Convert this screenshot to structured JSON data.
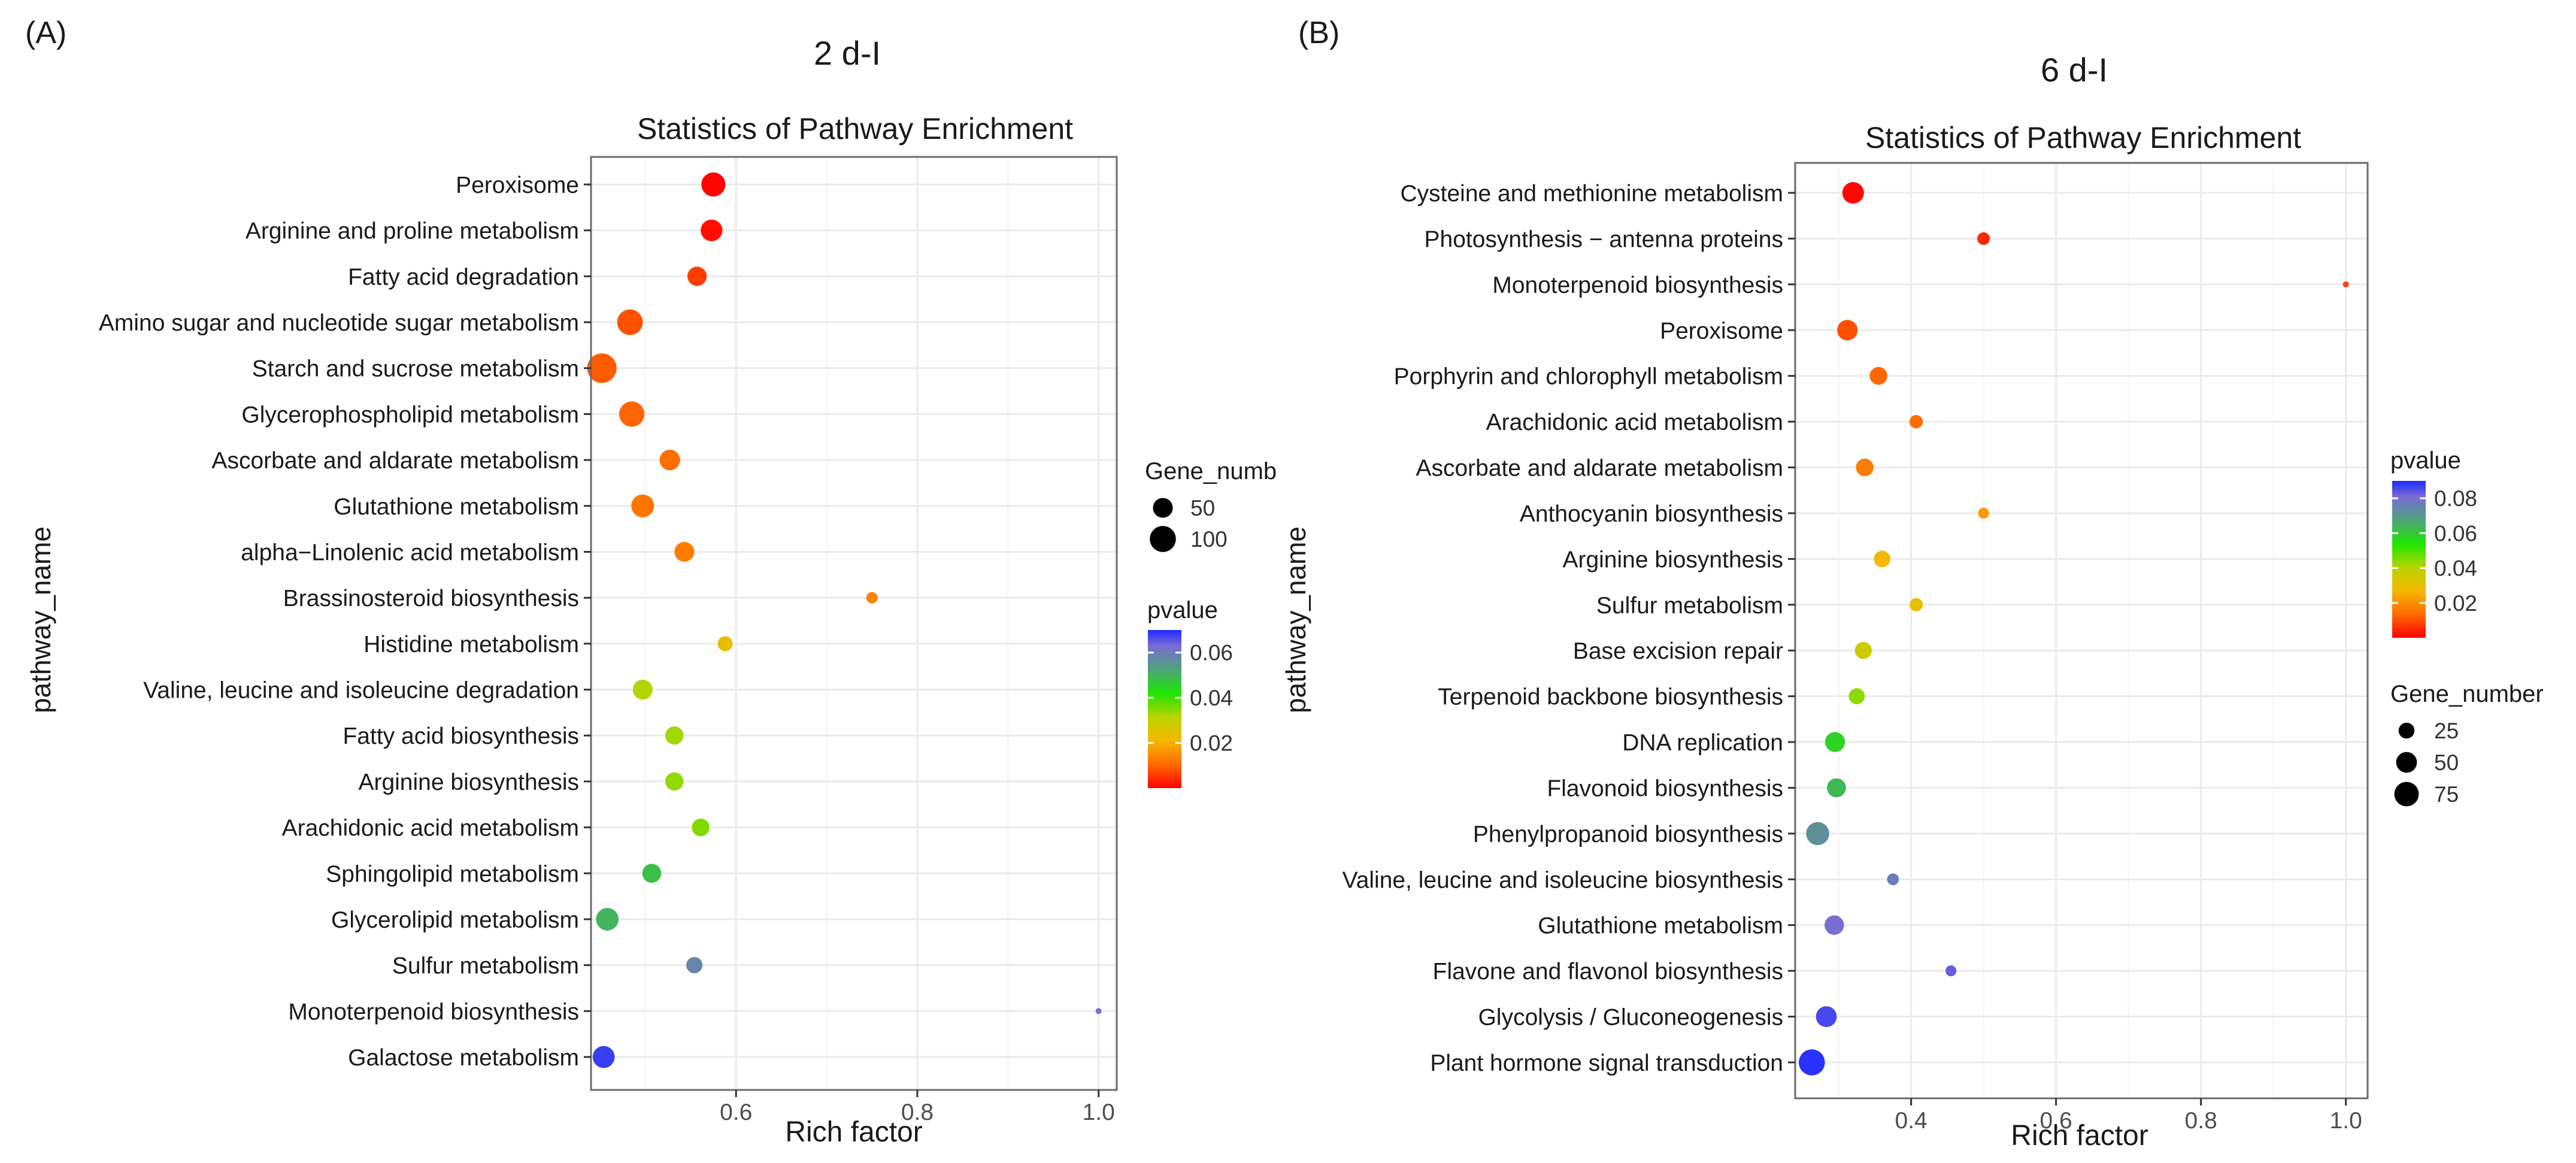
{
  "chart_data": [
    {
      "type": "scatter",
      "panel_label": "(A)",
      "header": "2 d-I",
      "title": "Statistics of Pathway Enrichment",
      "xlabel": "Rich factor",
      "ylabel": "pathway_name",
      "xlim": [
        0.44,
        1.02
      ],
      "xticks": [
        0.6,
        0.8,
        1.0
      ],
      "xtick_labels": [
        "0.6",
        "0.8",
        "1.0"
      ],
      "size_legend": {
        "title": "Gene_numb",
        "values": [
          50,
          100
        ],
        "labels": [
          "50",
          "100"
        ],
        "range": [
          5,
          140
        ]
      },
      "color_legend": {
        "title": "pvalue",
        "range": [
          0,
          0.07
        ],
        "ticks": [
          0.02,
          0.04,
          0.06
        ],
        "labels": [
          "0.02",
          "0.04",
          "0.06"
        ]
      },
      "points": [
        {
          "pathway": "Peroxisome",
          "rich_factor": 0.575,
          "pvalue": 0.0003,
          "gene_number": 82
        },
        {
          "pathway": "Arginine and proline metabolism",
          "rich_factor": 0.573,
          "pvalue": 0.0015,
          "gene_number": 63
        },
        {
          "pathway": "Fatty acid degradation",
          "rich_factor": 0.557,
          "pvalue": 0.006,
          "gene_number": 47
        },
        {
          "pathway": "Amino sugar and nucleotide sugar metabolism",
          "rich_factor": 0.483,
          "pvalue": 0.008,
          "gene_number": 96
        },
        {
          "pathway": "Starch and sucrose metabolism",
          "rich_factor": 0.452,
          "pvalue": 0.009,
          "gene_number": 135
        },
        {
          "pathway": "Glycerophospholipid metabolism",
          "rich_factor": 0.485,
          "pvalue": 0.01,
          "gene_number": 93
        },
        {
          "pathway": "Ascorbate and aldarate metabolism",
          "rich_factor": 0.527,
          "pvalue": 0.011,
          "gene_number": 55
        },
        {
          "pathway": "Glutathione metabolism",
          "rich_factor": 0.497,
          "pvalue": 0.012,
          "gene_number": 72
        },
        {
          "pathway": "alpha−Linolenic acid metabolism",
          "rich_factor": 0.543,
          "pvalue": 0.013,
          "gene_number": 50
        },
        {
          "pathway": "Brassinosteroid biosynthesis",
          "rich_factor": 0.75,
          "pvalue": 0.014,
          "gene_number": 12
        },
        {
          "pathway": "Histidine metabolism",
          "rich_factor": 0.588,
          "pvalue": 0.023,
          "gene_number": 24
        },
        {
          "pathway": "Valine, leucine and isoleucine degradation",
          "rich_factor": 0.497,
          "pvalue": 0.032,
          "gene_number": 50
        },
        {
          "pathway": "Fatty acid biosynthesis",
          "rich_factor": 0.532,
          "pvalue": 0.033,
          "gene_number": 40
        },
        {
          "pathway": "Arginine biosynthesis",
          "rich_factor": 0.532,
          "pvalue": 0.034,
          "gene_number": 40
        },
        {
          "pathway": "Arachidonic acid metabolism",
          "rich_factor": 0.561,
          "pvalue": 0.035,
          "gene_number": 37
        },
        {
          "pathway": "Sphingolipid metabolism",
          "rich_factor": 0.507,
          "pvalue": 0.048,
          "gene_number": 45
        },
        {
          "pathway": "Glycerolipid metabolism",
          "rich_factor": 0.458,
          "pvalue": 0.05,
          "gene_number": 70
        },
        {
          "pathway": "Sulfur metabolism",
          "rich_factor": 0.554,
          "pvalue": 0.058,
          "gene_number": 30
        },
        {
          "pathway": "Monoterpenoid biosynthesis",
          "rich_factor": 1.0,
          "pvalue": 0.062,
          "gene_number": 5
        },
        {
          "pathway": "Galactose metabolism",
          "rich_factor": 0.454,
          "pvalue": 0.068,
          "gene_number": 65
        }
      ]
    },
    {
      "type": "scatter",
      "panel_label": "(B)",
      "header": "6 d-I",
      "title": "Statistics of Pathway Enrichment",
      "xlabel": "Rich factor",
      "ylabel": "pathway_name",
      "xlim": [
        0.24,
        1.03
      ],
      "xticks": [
        0.4,
        0.6,
        0.8,
        1.0
      ],
      "xtick_labels": [
        "0.4",
        "0.6",
        "0.8",
        "1.0"
      ],
      "size_legend": {
        "title": "Gene_number",
        "values": [
          25,
          50,
          75
        ],
        "labels": [
          "25",
          "50",
          "75"
        ],
        "range": [
          5,
          90
        ]
      },
      "color_legend": {
        "title": "pvalue",
        "range": [
          0,
          0.09
        ],
        "ticks": [
          0.02,
          0.04,
          0.06,
          0.08
        ],
        "labels": [
          "0.02",
          "0.04",
          "0.06",
          "0.08"
        ]
      },
      "points": [
        {
          "pathway": "Cysteine and methionine metabolism",
          "rich_factor": 0.32,
          "pvalue": 0.001,
          "gene_number": 55
        },
        {
          "pathway": "Photosynthesis − antenna proteins",
          "rich_factor": 0.5,
          "pvalue": 0.005,
          "gene_number": 14
        },
        {
          "pathway": "Monoterpenoid biosynthesis",
          "rich_factor": 1.0,
          "pvalue": 0.008,
          "gene_number": 4
        },
        {
          "pathway": "Peroxisome",
          "rich_factor": 0.312,
          "pvalue": 0.01,
          "gene_number": 48
        },
        {
          "pathway": "Porphyrin and chlorophyll metabolism",
          "rich_factor": 0.355,
          "pvalue": 0.013,
          "gene_number": 33
        },
        {
          "pathway": "Arachidonic acid metabolism",
          "rich_factor": 0.407,
          "pvalue": 0.014,
          "gene_number": 16
        },
        {
          "pathway": "Ascorbate and aldarate metabolism",
          "rich_factor": 0.336,
          "pvalue": 0.017,
          "gene_number": 33
        },
        {
          "pathway": "Anthocyanin biosynthesis",
          "rich_factor": 0.5,
          "pvalue": 0.022,
          "gene_number": 10
        },
        {
          "pathway": "Arginine biosynthesis",
          "rich_factor": 0.36,
          "pvalue": 0.027,
          "gene_number": 28
        },
        {
          "pathway": "Sulfur metabolism",
          "rich_factor": 0.407,
          "pvalue": 0.03,
          "gene_number": 16
        },
        {
          "pathway": "Base excision repair",
          "rich_factor": 0.334,
          "pvalue": 0.036,
          "gene_number": 30
        },
        {
          "pathway": "Terpenoid backbone biosynthesis",
          "rich_factor": 0.325,
          "pvalue": 0.044,
          "gene_number": 26
        },
        {
          "pathway": "DNA replication",
          "rich_factor": 0.295,
          "pvalue": 0.058,
          "gene_number": 45
        },
        {
          "pathway": "Flavonoid biosynthesis",
          "rich_factor": 0.297,
          "pvalue": 0.063,
          "gene_number": 40
        },
        {
          "pathway": "Phenylpropanoid biosynthesis",
          "rich_factor": 0.271,
          "pvalue": 0.072,
          "gene_number": 65
        },
        {
          "pathway": "Valine, leucine and isoleucine biosynthesis",
          "rich_factor": 0.375,
          "pvalue": 0.077,
          "gene_number": 12
        },
        {
          "pathway": "Glutathione metabolism",
          "rich_factor": 0.294,
          "pvalue": 0.08,
          "gene_number": 42
        },
        {
          "pathway": "Flavone and flavonol biosynthesis",
          "rich_factor": 0.455,
          "pvalue": 0.083,
          "gene_number": 10
        },
        {
          "pathway": "Glycolysis / Gluconeogenesis",
          "rich_factor": 0.283,
          "pvalue": 0.086,
          "gene_number": 50
        },
        {
          "pathway": "Plant hormone signal transduction",
          "rich_factor": 0.263,
          "pvalue": 0.089,
          "gene_number": 88
        }
      ]
    }
  ]
}
